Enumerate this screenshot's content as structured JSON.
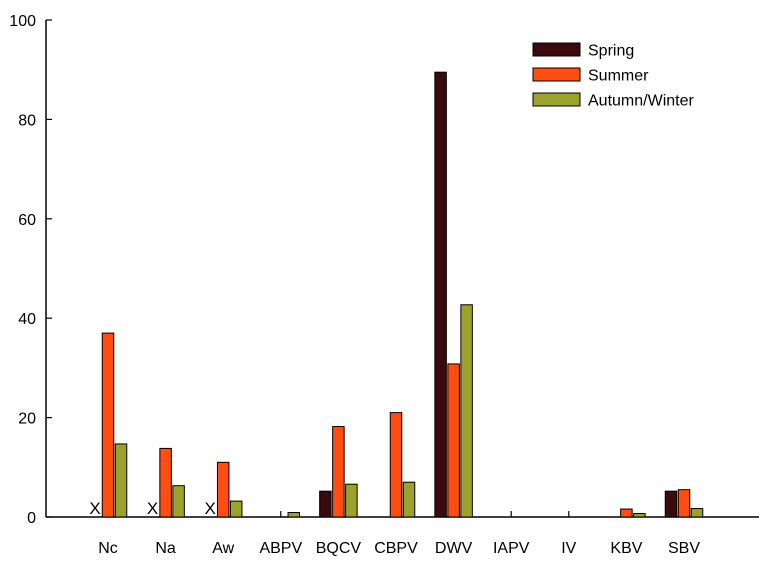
{
  "chart_data": {
    "type": "bar",
    "categories": [
      "Nc",
      "Na",
      "Aw",
      "ABPV",
      "BQCV",
      "CBPV",
      "DWV",
      "IAPV",
      "IV",
      "KBV",
      "SBV"
    ],
    "series": [
      {
        "name": "Spring",
        "color": "#3b0a0e",
        "values": [
          null,
          null,
          null,
          0,
          5.2,
          0,
          89.5,
          0,
          0,
          0,
          5.2
        ]
      },
      {
        "name": "Summer",
        "color": "#ff4d14",
        "values": [
          37,
          13.8,
          11,
          0,
          18.2,
          21,
          30.8,
          0,
          0,
          1.6,
          5.5
        ]
      },
      {
        "name": "Autumn/Winter",
        "color": "#9ca32c",
        "values": [
          14.7,
          6.3,
          3.2,
          0.9,
          6.6,
          7,
          42.7,
          0,
          0,
          0.7,
          1.7
        ]
      }
    ],
    "markers": [
      {
        "category": "Nc",
        "label": "X"
      },
      {
        "category": "Na",
        "label": "X"
      },
      {
        "category": "Aw",
        "label": "X"
      }
    ],
    "yticks": [
      "0",
      "20",
      "40",
      "60",
      "80",
      "100"
    ],
    "ylim": [
      0,
      100
    ],
    "title": "",
    "xlabel": "",
    "ylabel": "",
    "legend_position": "top-right",
    "grid": false
  }
}
